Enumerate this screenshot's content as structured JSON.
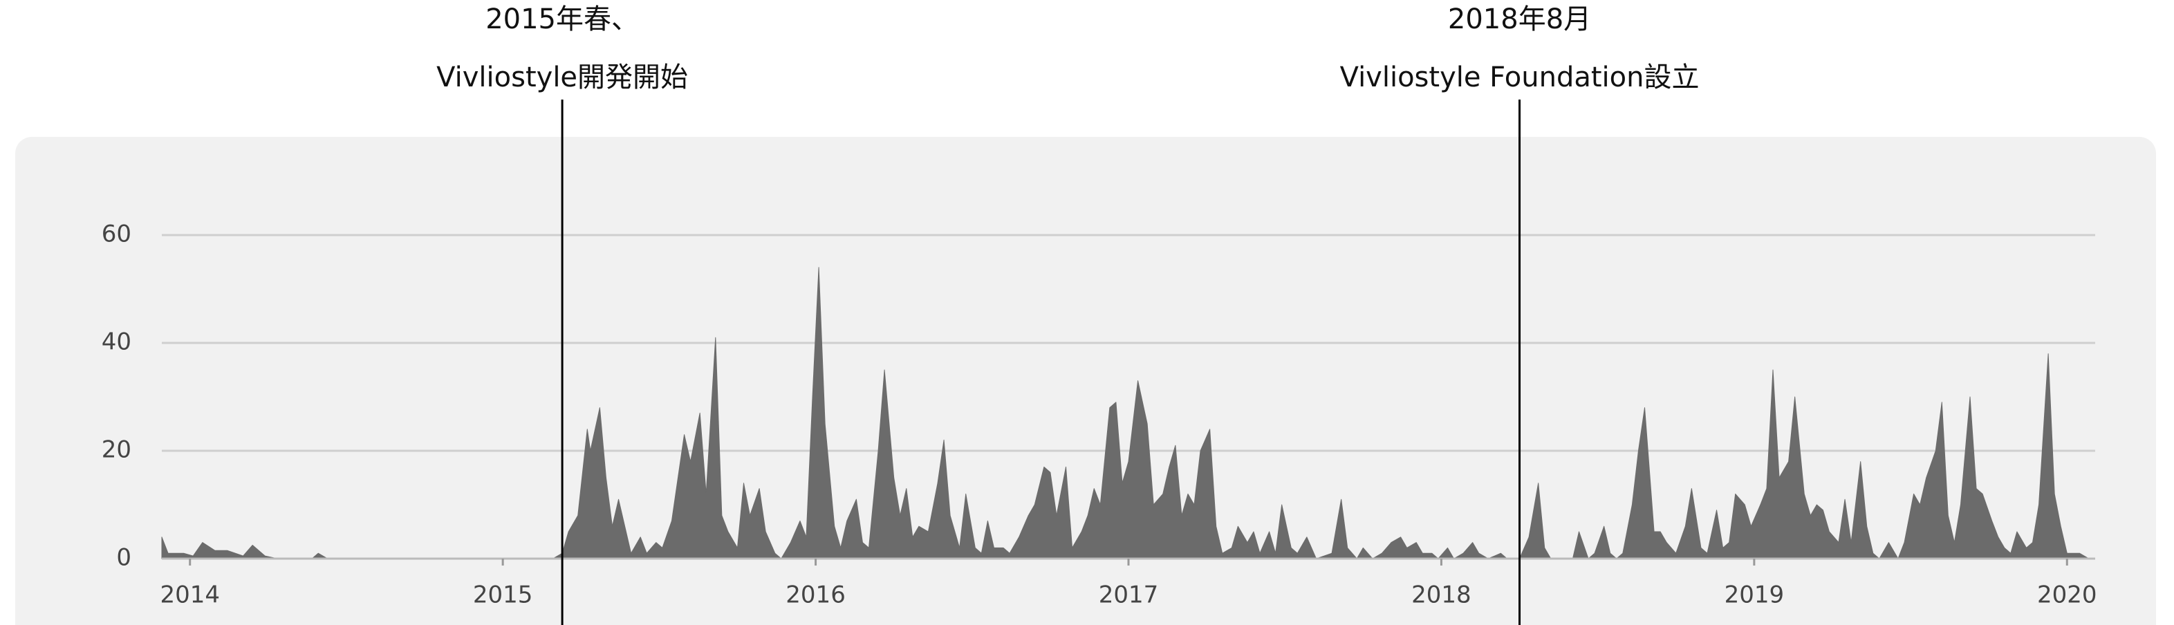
{
  "chart_data": {
    "type": "area",
    "color": "#6b6b6b",
    "x": [
      2013.91,
      2013.93,
      2013.98,
      2014.01,
      2014.04,
      2014.08,
      2014.12,
      2014.17,
      2014.2,
      2014.24,
      2014.28,
      2014.39,
      2014.41,
      2014.44,
      2015.16,
      2015.19,
      2015.21,
      2015.24,
      2015.27,
      2015.28,
      2015.31,
      2015.33,
      2015.35,
      2015.37,
      2015.39,
      2015.41,
      2015.44,
      2015.46,
      2015.49,
      2015.51,
      2015.54,
      2015.56,
      2015.58,
      2015.6,
      2015.63,
      2015.65,
      2015.68,
      2015.7,
      2015.72,
      2015.75,
      2015.77,
      2015.79,
      2015.82,
      2015.84,
      2015.87,
      2015.89,
      2015.92,
      2015.95,
      2015.97,
      2015.99,
      2016.01,
      2016.03,
      2016.06,
      2016.08,
      2016.1,
      2016.13,
      2016.15,
      2016.17,
      2016.2,
      2016.22,
      2016.25,
      2016.27,
      2016.29,
      2016.31,
      2016.33,
      2016.36,
      2016.39,
      2016.41,
      2016.43,
      2016.46,
      2016.48,
      2016.51,
      2016.53,
      2016.55,
      2016.57,
      2016.6,
      2016.62,
      2016.65,
      2016.68,
      2016.7,
      2016.73,
      2016.75,
      2016.77,
      2016.8,
      2016.82,
      2016.85,
      2016.87,
      2016.89,
      2016.91,
      2016.94,
      2016.96,
      2016.98,
      2017.0,
      2017.03,
      2017.06,
      2017.08,
      2017.11,
      2017.13,
      2017.15,
      2017.17,
      2017.19,
      2017.21,
      2017.23,
      2017.26,
      2017.28,
      2017.3,
      2017.33,
      2017.35,
      2017.38,
      2017.4,
      2017.42,
      2017.45,
      2017.47,
      2017.49,
      2017.52,
      2017.54,
      2017.57,
      2017.6,
      2017.65,
      2017.68,
      2017.7,
      2017.73,
      2017.75,
      2017.78,
      2017.81,
      2017.84,
      2017.87,
      2017.89,
      2017.92,
      2017.94,
      2017.97,
      2017.99,
      2018.02,
      2018.04,
      2018.07,
      2018.1,
      2018.12,
      2018.15,
      2018.19,
      2018.21,
      2018.25,
      2018.28,
      2018.31,
      2018.33,
      2018.35,
      2018.42,
      2018.44,
      2018.47,
      2018.49,
      2018.52,
      2018.54,
      2018.56,
      2018.58,
      2018.61,
      2018.63,
      2018.65,
      2018.68,
      2018.7,
      2018.72,
      2018.75,
      2018.78,
      2018.8,
      2018.83,
      2018.85,
      2018.88,
      2018.9,
      2018.92,
      2018.94,
      2018.97,
      2018.99,
      2019.02,
      2019.04,
      2019.06,
      2019.08,
      2019.11,
      2019.13,
      2019.16,
      2019.18,
      2019.2,
      2019.22,
      2019.24,
      2019.27,
      2019.29,
      2019.31,
      2019.34,
      2019.36,
      2019.38,
      2019.4,
      2019.43,
      2019.46,
      2019.48,
      2019.51,
      2019.53,
      2019.55,
      2019.58,
      2019.6,
      2019.62,
      2019.64,
      2019.66,
      2019.69,
      2019.71,
      2019.73,
      2019.76,
      2019.78,
      2019.8,
      2019.82,
      2019.84,
      2019.87,
      2019.89,
      2019.91,
      2019.94,
      2019.96,
      2019.98,
      2020.0,
      2020.02,
      2020.04,
      2020.07
    ],
    "values": [
      4,
      1,
      1,
      0.5,
      3,
      1.5,
      1.5,
      0.5,
      2.5,
      0.5,
      0,
      0,
      1,
      0,
      0,
      1,
      5,
      8,
      24,
      20,
      28,
      15,
      6,
      11,
      6,
      1,
      4,
      1,
      3,
      2,
      7,
      15,
      23,
      18,
      27,
      12,
      41,
      8,
      5,
      2,
      14,
      8,
      13,
      5,
      1,
      0,
      3,
      7,
      4,
      30,
      54,
      25,
      6,
      2,
      7,
      11,
      3,
      2,
      20,
      35,
      15,
      8,
      13,
      4,
      6,
      5,
      14,
      22,
      8,
      2,
      12,
      2,
      1,
      7,
      2,
      2,
      1,
      4,
      8,
      10,
      17,
      16,
      8,
      17,
      2,
      5,
      8,
      13,
      10,
      28,
      29,
      14,
      18,
      33,
      25,
      10,
      12,
      17,
      21,
      8,
      12,
      10,
      20,
      24,
      6,
      1,
      2,
      6,
      3,
      5,
      1,
      5,
      1,
      10,
      2,
      1,
      4,
      0,
      1,
      11,
      2,
      0,
      2,
      0,
      1,
      3,
      4,
      2,
      3,
      1,
      1,
      0,
      2,
      0,
      1,
      3,
      1,
      0,
      1,
      0,
      0,
      4,
      14,
      2,
      0,
      0,
      5,
      0,
      1,
      6,
      1,
      0,
      1,
      10,
      20,
      28,
      5,
      5,
      3,
      1,
      6,
      13,
      2,
      1,
      9,
      2,
      3,
      12,
      10,
      6,
      10,
      13,
      35,
      15,
      18,
      30,
      12,
      8,
      10,
      9,
      5,
      3,
      11,
      3,
      18,
      6,
      1,
      0,
      3,
      0,
      3,
      12,
      10,
      15,
      20,
      29,
      8,
      3,
      10,
      30,
      13,
      12,
      7,
      4,
      2,
      1,
      5,
      2,
      3,
      10,
      38,
      12,
      6,
      1,
      1,
      1,
      0
    ],
    "xlim": [
      2013.91,
      2020.09
    ],
    "xticks": [
      2014,
      2015,
      2016,
      2017,
      2018,
      2019,
      2020
    ],
    "ylim": [
      0,
      60
    ],
    "yticks": [
      0,
      20,
      40,
      60
    ],
    "grid": true,
    "annotations": [
      {
        "lines": [
          "2015年春、",
          "Vivliostyle開発開始"
        ],
        "x": 2015.19
      },
      {
        "lines": [
          "2018年8月",
          "Vivliostyle Foundation設立"
        ],
        "x": 2018.25
      }
    ]
  }
}
